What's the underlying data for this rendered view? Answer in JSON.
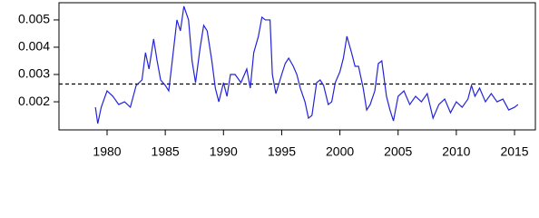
{
  "chart_data": {
    "type": "line",
    "x": [
      1979.0,
      1979.2,
      1979.5,
      1980.0,
      1980.5,
      1981.0,
      1981.5,
      1982.0,
      1982.5,
      1983.0,
      1983.3,
      1983.6,
      1984.0,
      1984.3,
      1984.6,
      1985.0,
      1985.3,
      1985.6,
      1986.0,
      1986.3,
      1986.6,
      1987.0,
      1987.3,
      1987.6,
      1988.0,
      1988.3,
      1988.6,
      1989.0,
      1989.3,
      1989.6,
      1990.0,
      1990.3,
      1990.6,
      1991.0,
      1991.5,
      1992.0,
      1992.3,
      1992.6,
      1993.0,
      1993.3,
      1993.6,
      1994.0,
      1994.2,
      1994.5,
      1995.0,
      1995.3,
      1995.6,
      1996.0,
      1996.3,
      1996.6,
      1997.0,
      1997.3,
      1997.6,
      1998.0,
      1998.3,
      1998.6,
      1999.0,
      1999.3,
      1999.6,
      2000.0,
      2000.3,
      2000.6,
      2001.0,
      2001.3,
      2001.6,
      2002.0,
      2002.3,
      2002.6,
      2003.0,
      2003.3,
      2003.6,
      2004.0,
      2004.3,
      2004.6,
      2005.0,
      2005.5,
      2006.0,
      2006.5,
      2007.0,
      2007.5,
      2008.0,
      2008.5,
      2009.0,
      2009.5,
      2010.0,
      2010.5,
      2011.0,
      2011.3,
      2011.6,
      2012.0,
      2012.5,
      2013.0,
      2013.5,
      2014.0,
      2014.5,
      2015.0,
      2015.3
    ],
    "series": [
      {
        "color": "#2323d8",
        "values": [
          0.0018,
          0.0012,
          0.0018,
          0.0024,
          0.0022,
          0.0019,
          0.002,
          0.0018,
          0.0026,
          0.0028,
          0.0038,
          0.0032,
          0.0043,
          0.0035,
          0.0028,
          0.0026,
          0.0024,
          0.0035,
          0.005,
          0.0046,
          0.0055,
          0.005,
          0.0035,
          0.0027,
          0.004,
          0.0048,
          0.0046,
          0.0035,
          0.0025,
          0.002,
          0.0027,
          0.0022,
          0.003,
          0.003,
          0.0027,
          0.0032,
          0.0025,
          0.0038,
          0.0044,
          0.0051,
          0.005,
          0.005,
          0.003,
          0.0023,
          0.003,
          0.0034,
          0.0036,
          0.0033,
          0.003,
          0.0025,
          0.002,
          0.0014,
          0.0015,
          0.0027,
          0.0028,
          0.0026,
          0.0019,
          0.002,
          0.0027,
          0.0031,
          0.0036,
          0.0044,
          0.0038,
          0.0033,
          0.0033,
          0.0025,
          0.0017,
          0.0019,
          0.0024,
          0.0034,
          0.0035,
          0.0022,
          0.0017,
          0.0013,
          0.0022,
          0.0024,
          0.0019,
          0.0022,
          0.002,
          0.0023,
          0.0014,
          0.0019,
          0.0021,
          0.0016,
          0.002,
          0.0018,
          0.0021,
          0.0026,
          0.0022,
          0.0025,
          0.002,
          0.0023,
          0.002,
          0.0021,
          0.0017,
          0.0018,
          0.0019
        ]
      }
    ],
    "reference_line": 0.00265,
    "xlim": [
      1975.87,
      2016.79
    ],
    "ylim": [
      0.00097,
      0.00563
    ],
    "xticks": [
      1980,
      1985,
      1990,
      1995,
      2000,
      2005,
      2010,
      2015
    ],
    "yticks": [
      0.002,
      0.003,
      0.004,
      0.005
    ]
  }
}
